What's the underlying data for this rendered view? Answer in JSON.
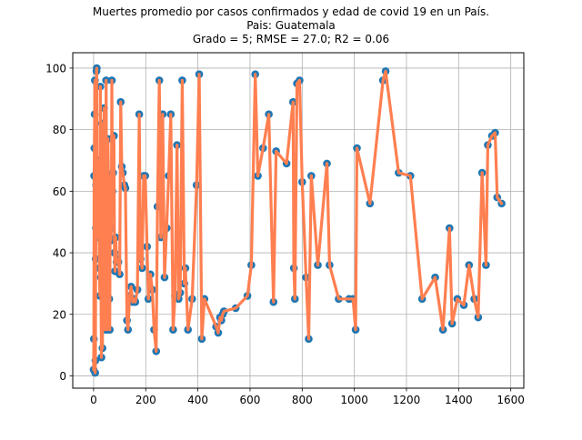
{
  "chart_data": {
    "type": "scatter",
    "title_lines": [
      "Muertes promedio por casos confirmados y edad de covid 19 en un País.",
      "Pais: Guatemala",
      "Grado = 5; RMSE = 27.0; R2 = 0.06"
    ],
    "xlabel": "",
    "ylabel": "",
    "xlim": [
      -80,
      1650
    ],
    "ylim": [
      -4,
      105
    ],
    "xticks": [
      0,
      200,
      400,
      600,
      800,
      1000,
      1200,
      1400,
      1600
    ],
    "yticks": [
      0,
      20,
      40,
      60,
      80,
      100
    ],
    "grid": true,
    "colors": {
      "points": "#1f77b4",
      "line": "#ff7f50",
      "grid": "#b0b0b0"
    },
    "series": [
      {
        "values": [
          [
            0,
            2
          ],
          [
            1,
            12
          ],
          [
            2,
            65
          ],
          [
            3,
            74
          ],
          [
            4,
            85
          ],
          [
            5,
            96
          ],
          [
            6,
            1
          ],
          [
            7,
            5
          ],
          [
            8,
            38
          ],
          [
            9,
            48
          ],
          [
            10,
            62
          ],
          [
            11,
            99
          ],
          [
            12,
            100
          ],
          [
            14,
            50
          ],
          [
            16,
            45
          ],
          [
            18,
            70
          ],
          [
            20,
            56
          ],
          [
            22,
            35
          ],
          [
            24,
            26
          ],
          [
            26,
            94
          ],
          [
            28,
            32
          ],
          [
            30,
            6
          ],
          [
            32,
            82
          ],
          [
            34,
            9
          ],
          [
            36,
            60
          ],
          [
            38,
            45
          ],
          [
            40,
            87
          ],
          [
            42,
            30
          ],
          [
            44,
            15
          ],
          [
            46,
            25
          ],
          [
            48,
            96
          ],
          [
            50,
            46
          ],
          [
            52,
            15
          ],
          [
            55,
            77
          ],
          [
            58,
            55
          ],
          [
            60,
            25
          ],
          [
            62,
            15
          ],
          [
            64,
            65
          ],
          [
            66,
            44
          ],
          [
            68,
            48
          ],
          [
            70,
            96
          ],
          [
            72,
            60
          ],
          [
            75,
            66
          ],
          [
            78,
            78
          ],
          [
            80,
            40
          ],
          [
            82,
            34
          ],
          [
            85,
            45
          ],
          [
            88,
            37
          ],
          [
            90,
            38
          ],
          [
            95,
            37
          ],
          [
            100,
            33
          ],
          [
            104,
            89
          ],
          [
            108,
            68
          ],
          [
            112,
            66
          ],
          [
            118,
            62
          ],
          [
            122,
            61
          ],
          [
            128,
            18
          ],
          [
            132,
            15
          ],
          [
            138,
            26
          ],
          [
            144,
            29
          ],
          [
            150,
            24
          ],
          [
            155,
            25
          ],
          [
            160,
            24
          ],
          [
            168,
            28
          ],
          [
            175,
            85
          ],
          [
            180,
            38
          ],
          [
            186,
            35
          ],
          [
            192,
            65
          ],
          [
            198,
            65
          ],
          [
            205,
            42
          ],
          [
            210,
            25
          ],
          [
            218,
            33
          ],
          [
            225,
            28
          ],
          [
            232,
            15
          ],
          [
            240,
            8
          ],
          [
            245,
            55
          ],
          [
            252,
            96
          ],
          [
            258,
            45
          ],
          [
            265,
            85
          ],
          [
            272,
            32
          ],
          [
            280,
            48
          ],
          [
            288,
            65
          ],
          [
            296,
            85
          ],
          [
            305,
            15
          ],
          [
            312,
            26
          ],
          [
            320,
            75
          ],
          [
            326,
            25
          ],
          [
            332,
            27
          ],
          [
            340,
            96
          ],
          [
            348,
            30
          ],
          [
            352,
            35
          ],
          [
            362,
            15
          ],
          [
            378,
            25
          ],
          [
            395,
            62
          ],
          [
            405,
            98
          ],
          [
            415,
            12
          ],
          [
            425,
            25
          ],
          [
            470,
            16
          ],
          [
            478,
            14
          ],
          [
            485,
            19
          ],
          [
            490,
            18
          ],
          [
            495,
            20
          ],
          [
            500,
            21
          ],
          [
            545,
            22
          ],
          [
            590,
            26
          ],
          [
            605,
            36
          ],
          [
            620,
            98
          ],
          [
            630,
            65
          ],
          [
            650,
            74
          ],
          [
            672,
            85
          ],
          [
            690,
            24
          ],
          [
            700,
            73
          ],
          [
            740,
            69
          ],
          [
            765,
            89
          ],
          [
            768,
            35
          ],
          [
            772,
            25
          ],
          [
            780,
            95
          ],
          [
            790,
            96
          ],
          [
            800,
            63
          ],
          [
            815,
            32
          ],
          [
            825,
            12
          ],
          [
            835,
            65
          ],
          [
            860,
            36
          ],
          [
            895,
            69
          ],
          [
            905,
            36
          ],
          [
            940,
            25
          ],
          [
            980,
            25
          ],
          [
            995,
            25
          ],
          [
            1005,
            15
          ],
          [
            1010,
            74
          ],
          [
            1060,
            56
          ],
          [
            1110,
            96
          ],
          [
            1120,
            99
          ],
          [
            1170,
            66
          ],
          [
            1215,
            65
          ],
          [
            1260,
            25
          ],
          [
            1310,
            32
          ],
          [
            1340,
            15
          ],
          [
            1365,
            48
          ],
          [
            1375,
            17
          ],
          [
            1395,
            25
          ],
          [
            1420,
            23
          ],
          [
            1440,
            36
          ],
          [
            1460,
            25
          ],
          [
            1475,
            19
          ],
          [
            1490,
            66
          ],
          [
            1505,
            36
          ],
          [
            1512,
            75
          ],
          [
            1528,
            78
          ],
          [
            1540,
            79
          ],
          [
            1548,
            58
          ],
          [
            1565,
            56
          ]
        ]
      }
    ]
  }
}
